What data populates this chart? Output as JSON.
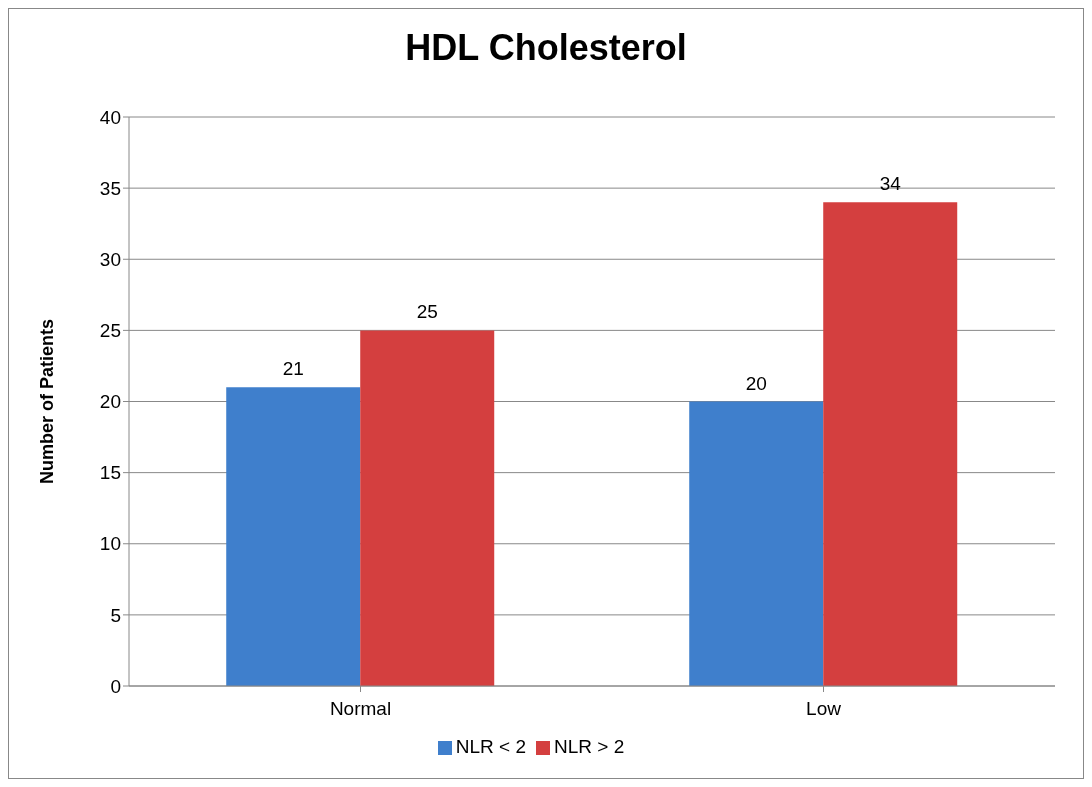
{
  "chart_data": {
    "type": "bar",
    "title": "HDL Cholesterol",
    "ylabel": "Number of Patients",
    "categories": [
      "Normal",
      "Low"
    ],
    "series": [
      {
        "name": "NLR < 2",
        "color": "#3f7fcc",
        "values": [
          21,
          20
        ]
      },
      {
        "name": "NLR > 2",
        "color": "#d43f3f",
        "values": [
          25,
          34
        ]
      }
    ],
    "ylim": [
      0,
      40
    ],
    "yticks": [
      0,
      5,
      10,
      15,
      20,
      25,
      30,
      35,
      40
    ],
    "grid": "y",
    "legend": "bottom",
    "data_labels": true
  }
}
